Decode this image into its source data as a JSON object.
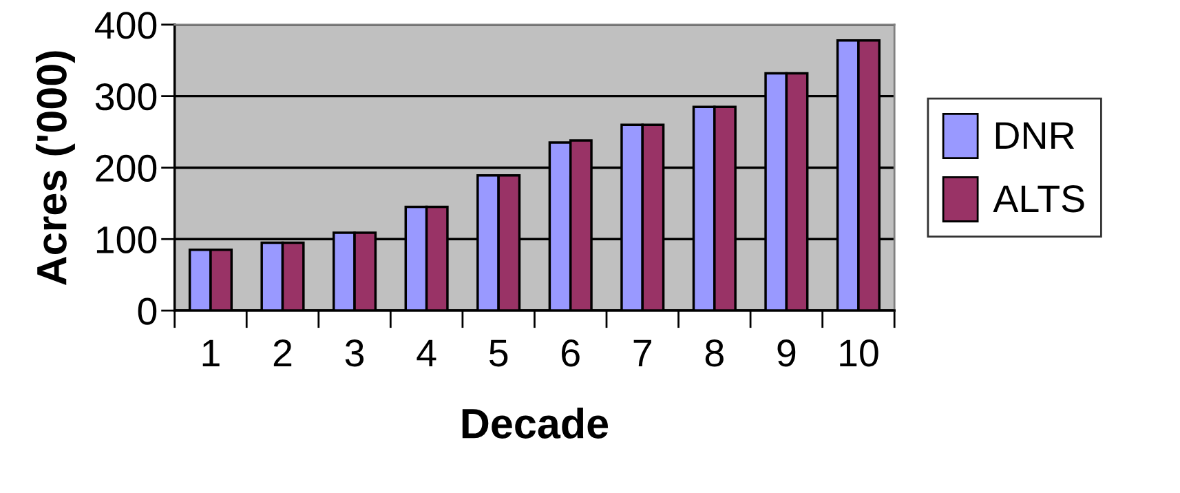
{
  "chart_data": {
    "type": "bar",
    "xlabel": "Decade",
    "ylabel": "Acres ('000)",
    "categories": [
      "1",
      "2",
      "3",
      "4",
      "5",
      "6",
      "7",
      "8",
      "9",
      "10"
    ],
    "series": [
      {
        "name": "DNR",
        "color": "#9999ff",
        "values": [
          85,
          95,
          109,
          145,
          189,
          235,
          260,
          285,
          332,
          378
        ]
      },
      {
        "name": "ALTS",
        "color": "#993366",
        "values": [
          85,
          95,
          109,
          145,
          189,
          238,
          260,
          285,
          332,
          378
        ]
      }
    ],
    "ylim": [
      0,
      400
    ],
    "yticks": [
      0,
      100,
      200,
      300,
      400
    ],
    "grid": "y",
    "legend": "right"
  }
}
